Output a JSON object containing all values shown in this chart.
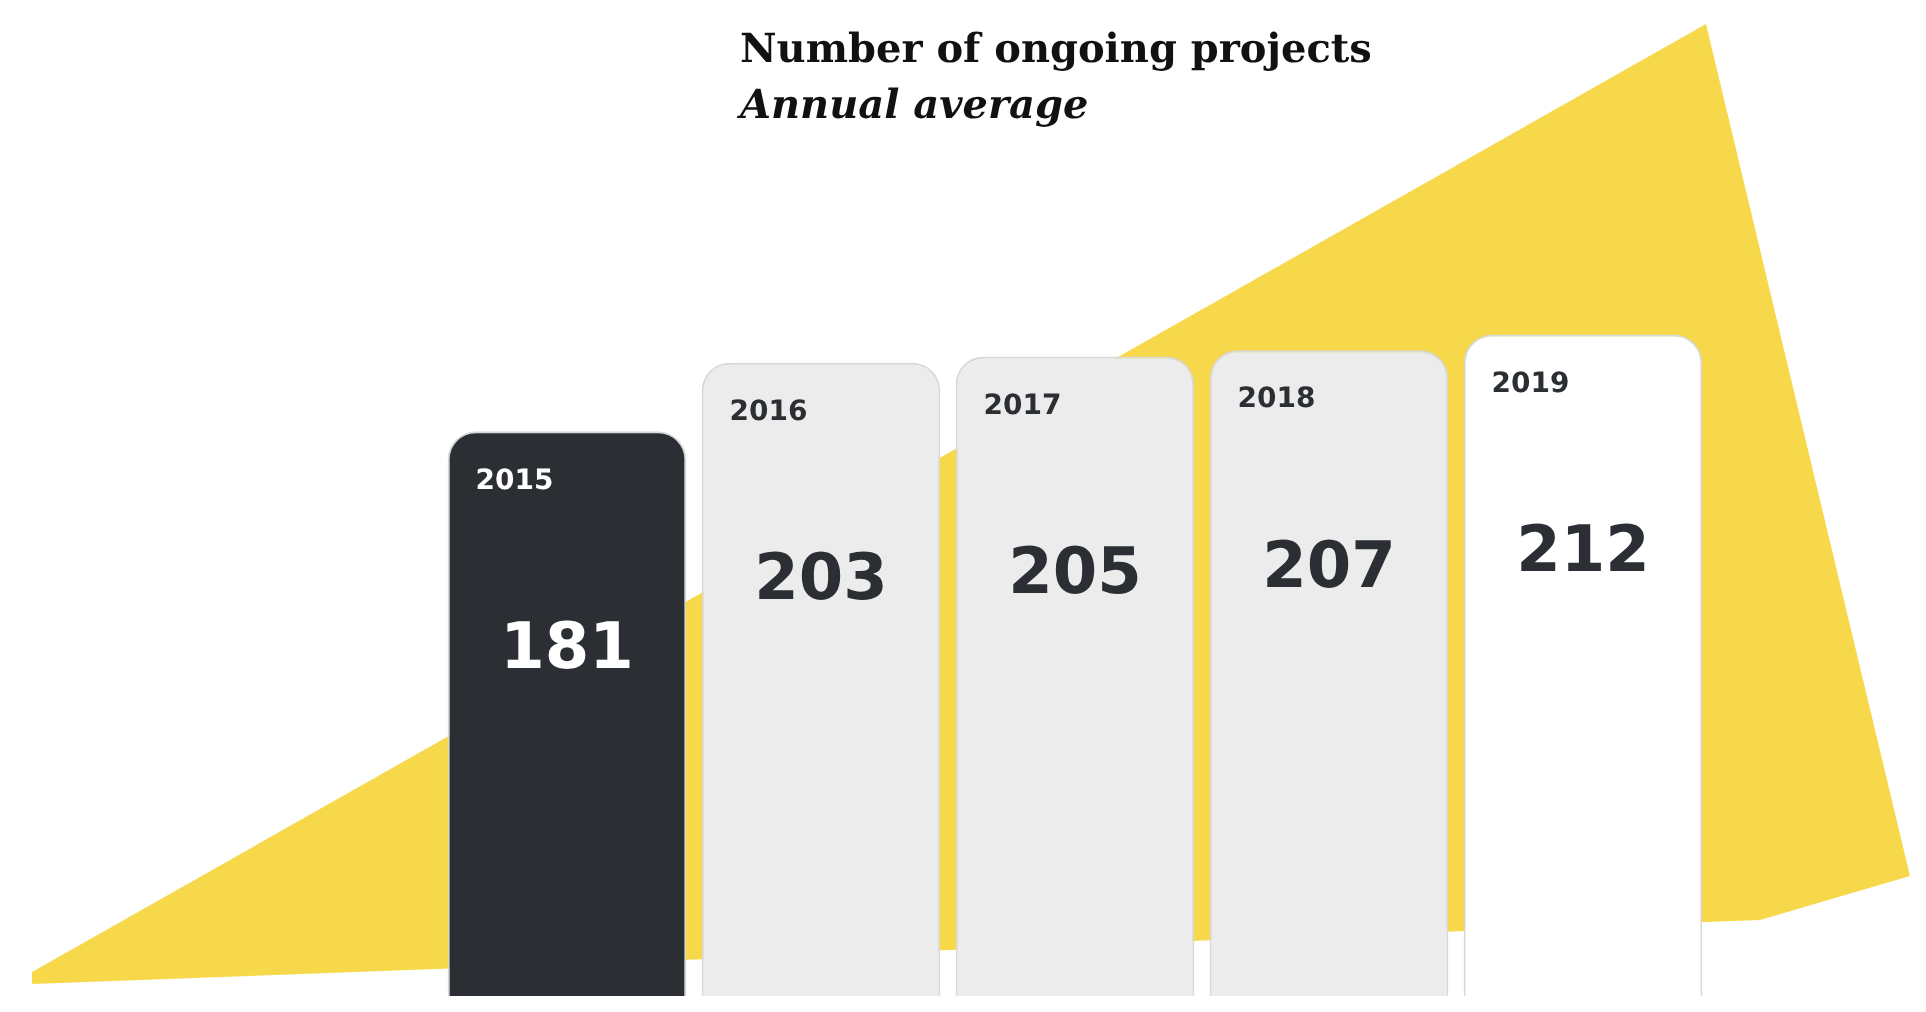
{
  "chart_data": {
    "type": "bar",
    "title": "Number of ongoing projects",
    "subtitle": "Annual average",
    "categories": [
      "2015",
      "2016",
      "2017",
      "2018",
      "2019"
    ],
    "values": [
      181,
      203,
      205,
      207,
      212
    ],
    "colors": [
      "#2b2f33",
      "#ececec",
      "#ececec",
      "#ececec",
      "#ffffff"
    ],
    "data_labels": true,
    "legend": false,
    "tick_labels": false
  }
}
